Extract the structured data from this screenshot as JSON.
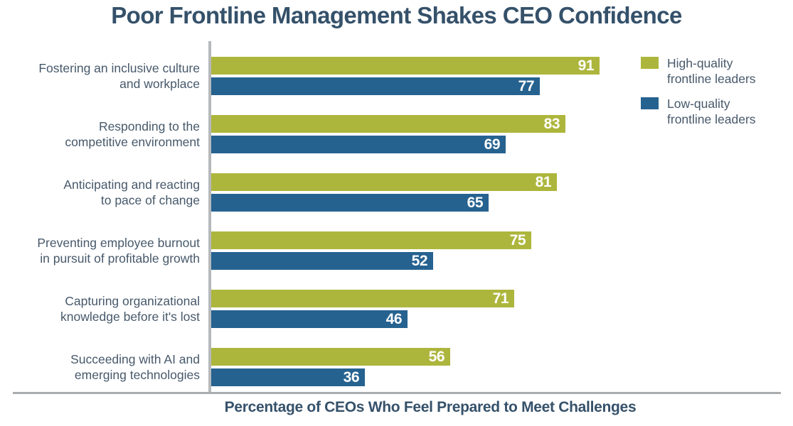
{
  "title": "Poor Frontline Management Shakes CEO Confidence",
  "xaxis_title": "Percentage of CEOs Who Feel Prepared to Meet Challenges",
  "colors": {
    "high_quality_bar": "#adb63c",
    "low_quality_bar": "#266290",
    "title_text": "#35516a",
    "category_text": "#47596b",
    "value_text": "#ffffff",
    "axis_line": "#b0b3b5"
  },
  "legend": {
    "items": [
      {
        "label": "High-quality frontline leaders",
        "label_lines": [
          "High-quality",
          "frontline leaders"
        ],
        "color": "#adb63c"
      },
      {
        "label": "Low-quality frontline leaders",
        "label_lines": [
          "Low-quality",
          "frontline leaders"
        ],
        "color": "#266290"
      }
    ]
  },
  "chart_data": {
    "type": "bar",
    "orientation": "horizontal",
    "title": "Poor Frontline Management Shakes CEO Confidence",
    "xlabel": "Percentage of CEOs Who Feel Prepared to Meet Challenges",
    "ylabel": "",
    "xlim": [
      0,
      100
    ],
    "grid": false,
    "legend_position": "top-right",
    "value_labels": "inside-end",
    "categories": [
      "Fostering an inclusive culture and workplace",
      "Responding to the competitive environment",
      "Anticipating and reacting to pace of change",
      "Preventing employee burnout in pursuit of profitable growth",
      "Capturing organizational knowledge before it's lost",
      "Succeeding with AI and emerging technologies"
    ],
    "category_label_lines": [
      [
        "Fostering an inclusive culture",
        "and workplace"
      ],
      [
        "Responding to the",
        "competitive environment"
      ],
      [
        "Anticipating and reacting",
        "to pace of change"
      ],
      [
        "Preventing employee burnout",
        "in pursuit of profitable growth"
      ],
      [
        "Capturing organizational",
        "knowledge before it's lost"
      ],
      [
        "Succeeding with AI and",
        "emerging technologies"
      ]
    ],
    "series": [
      {
        "name": "High-quality frontline leaders",
        "color": "#adb63c",
        "values": [
          91,
          83,
          81,
          75,
          71,
          56
        ]
      },
      {
        "name": "Low-quality frontline leaders",
        "color": "#266290",
        "values": [
          77,
          69,
          65,
          52,
          46,
          36
        ]
      }
    ]
  }
}
